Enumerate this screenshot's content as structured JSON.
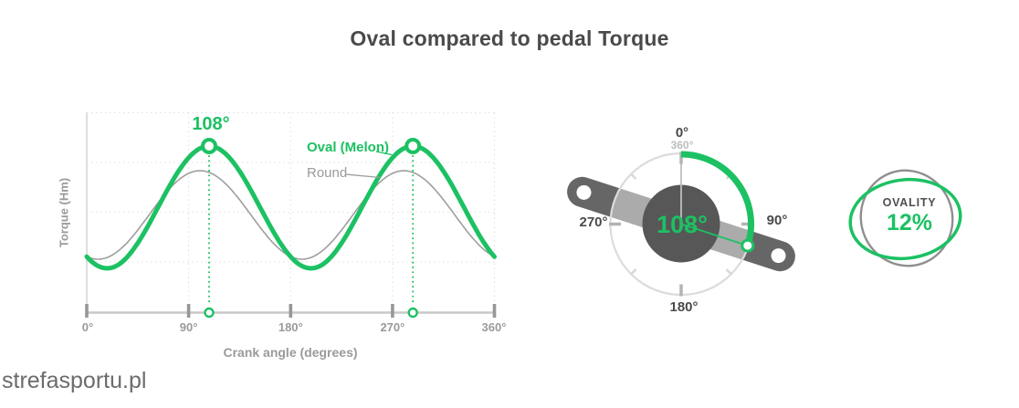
{
  "title": "Oval compared to pedal Torque",
  "watermark": "strefasportu.pl",
  "colors": {
    "green": "#1cc163",
    "dark_text": "#4a4a4a",
    "gray_text": "#9a9a9a",
    "faint_text": "#bdbdbd",
    "axis_line": "#c9c9c9",
    "grid_line": "#e3e3e3",
    "round_curve": "#9e9e9e",
    "crank_arm": "#666666",
    "hub_circle": "#575757",
    "dial_ring": "#dcdcdc"
  },
  "chart_data": {
    "type": "line",
    "title": "",
    "xlabel": "Crank angle (degrees)",
    "ylabel": "Torque (Hm)",
    "x_ticks": [
      "0°",
      "90°",
      "180°",
      "270°",
      "360°"
    ],
    "x_range_deg": [
      0,
      360
    ],
    "y_axis_values_shown": false,
    "grid": true,
    "legend_position": "inline right of first peak",
    "x_deg_step": 30,
    "series": [
      {
        "name": "Oval (Melon)",
        "color": "#1cc163",
        "model": "sinusoid",
        "period_deg": 180,
        "peak_angle_deg": 108,
        "relative_torque_values": [
          0.64,
          0.59,
          0.95,
          1.36,
          1.41,
          1.05,
          0.64,
          0.59,
          0.95,
          1.36,
          1.41,
          1.05,
          0.64
        ],
        "peak_relative_torque": 1.45
      },
      {
        "name": "Round",
        "color": "#9e9e9e",
        "model": "sinusoid",
        "period_deg": 180,
        "peak_angle_deg": 100,
        "relative_torque_values": [
          0.7,
          0.76,
          1.06,
          1.3,
          1.25,
          0.94,
          0.7,
          0.76,
          1.06,
          1.3,
          1.25,
          0.94,
          0.7
        ],
        "peak_relative_torque": 1.32
      }
    ],
    "annotations": [
      {
        "text": "108°",
        "x_deg": 108
      },
      {
        "text": "",
        "x_deg": 288
      }
    ]
  },
  "dial": {
    "labels": {
      "top_primary": "0°",
      "top_secondary": "360°",
      "right": "90°",
      "bottom": "180°",
      "left": "270°",
      "center": "108°"
    },
    "arc_start_deg": 0,
    "arc_end_deg": 108
  },
  "ovality": {
    "label": "OVALITY",
    "value": "12%"
  }
}
